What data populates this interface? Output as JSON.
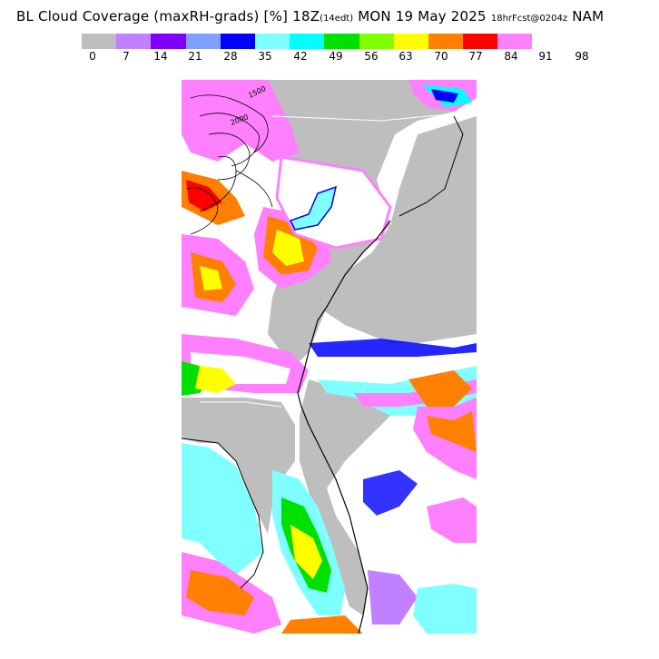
{
  "title": {
    "field": "BL Cloud Coverage (maxRH-grads) [%]",
    "valid_time": "18Z",
    "local_time": "(14edt)",
    "date": "MON 19 May 2025",
    "forecast": "18hrFcst@0204z",
    "model": "NAM"
  },
  "colorbar": {
    "colors": [
      "#bebebe",
      "#c080ff",
      "#8000ff",
      "#7fa0ff",
      "#0000ff",
      "#80ffff",
      "#00ffff",
      "#00e000",
      "#80ff00",
      "#ffff00",
      "#ff8000",
      "#ff0000",
      "#ff80ff"
    ],
    "ticks": [
      "0",
      "7",
      "14",
      "21",
      "28",
      "35",
      "42",
      "49",
      "56",
      "63",
      "70",
      "77",
      "84",
      "91",
      "98"
    ]
  },
  "map": {
    "land_color": "#bebebe",
    "clear_color": "#ffffff",
    "contour_labels": [
      "1500",
      "2000"
    ]
  }
}
